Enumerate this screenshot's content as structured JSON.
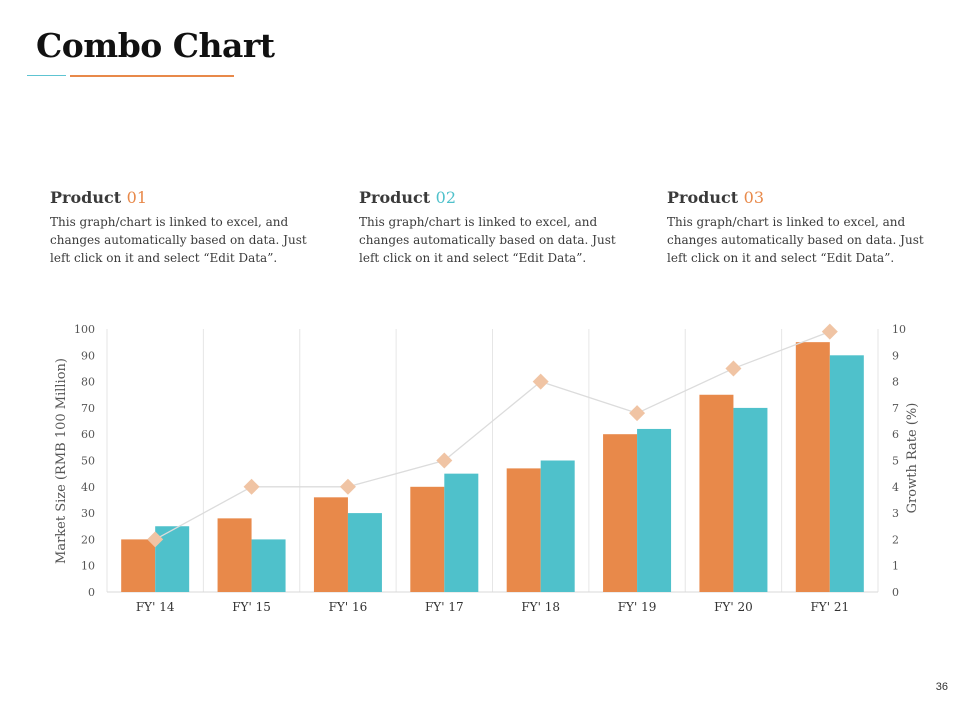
{
  "title": "Combo Chart",
  "page_number": "36",
  "products": [
    {
      "name": "Product",
      "number": "01",
      "number_color": "#e8894a",
      "description": "This graph/chart is linked to excel, and changes automatically based on data. Just left click on it and select “Edit Data”."
    },
    {
      "name": "Product",
      "number": "02",
      "number_color": "#4fc1cb",
      "description": "This graph/chart is linked to excel, and changes automatically based on data. Just left click on it and select “Edit Data”."
    },
    {
      "name": "Product",
      "number": "03",
      "number_color": "#e8894a",
      "description": "This graph/chart is linked to excel, and changes automatically based on data. Just left click on it and select “Edit Data”."
    }
  ],
  "chart_data": {
    "type": "bar",
    "categories": [
      "FY' 14",
      "FY' 15",
      "FY' 16",
      "FY' 17",
      "FY' 18",
      "FY' 19",
      "FY' 20",
      "FY' 21"
    ],
    "series": [
      {
        "kind": "bar",
        "axis": "left",
        "color": "#e8894a",
        "values": [
          20,
          28,
          36,
          40,
          47,
          60,
          75,
          95
        ]
      },
      {
        "kind": "bar",
        "axis": "left",
        "color": "#4fc1cb",
        "values": [
          25,
          20,
          30,
          45,
          50,
          62,
          70,
          90
        ]
      },
      {
        "kind": "line",
        "axis": "right",
        "color": "#f0c4a4",
        "values": [
          2,
          4,
          4,
          5,
          8,
          6.8,
          8.5,
          9.9
        ]
      }
    ],
    "ylabel": "Market Size (RMB 100 Million)",
    "y2label": "Growth Rate (%)",
    "ylim": [
      0,
      100
    ],
    "y2lim": [
      0,
      10
    ],
    "yticks": [
      "0",
      "10",
      "20",
      "30",
      "40",
      "50",
      "60",
      "70",
      "80",
      "90",
      "100"
    ],
    "y2ticks": [
      "0",
      "1",
      "2",
      "3",
      "4",
      "5",
      "6",
      "7",
      "8",
      "9",
      "10"
    ],
    "grid": "vertical category separators",
    "legend": "none"
  }
}
